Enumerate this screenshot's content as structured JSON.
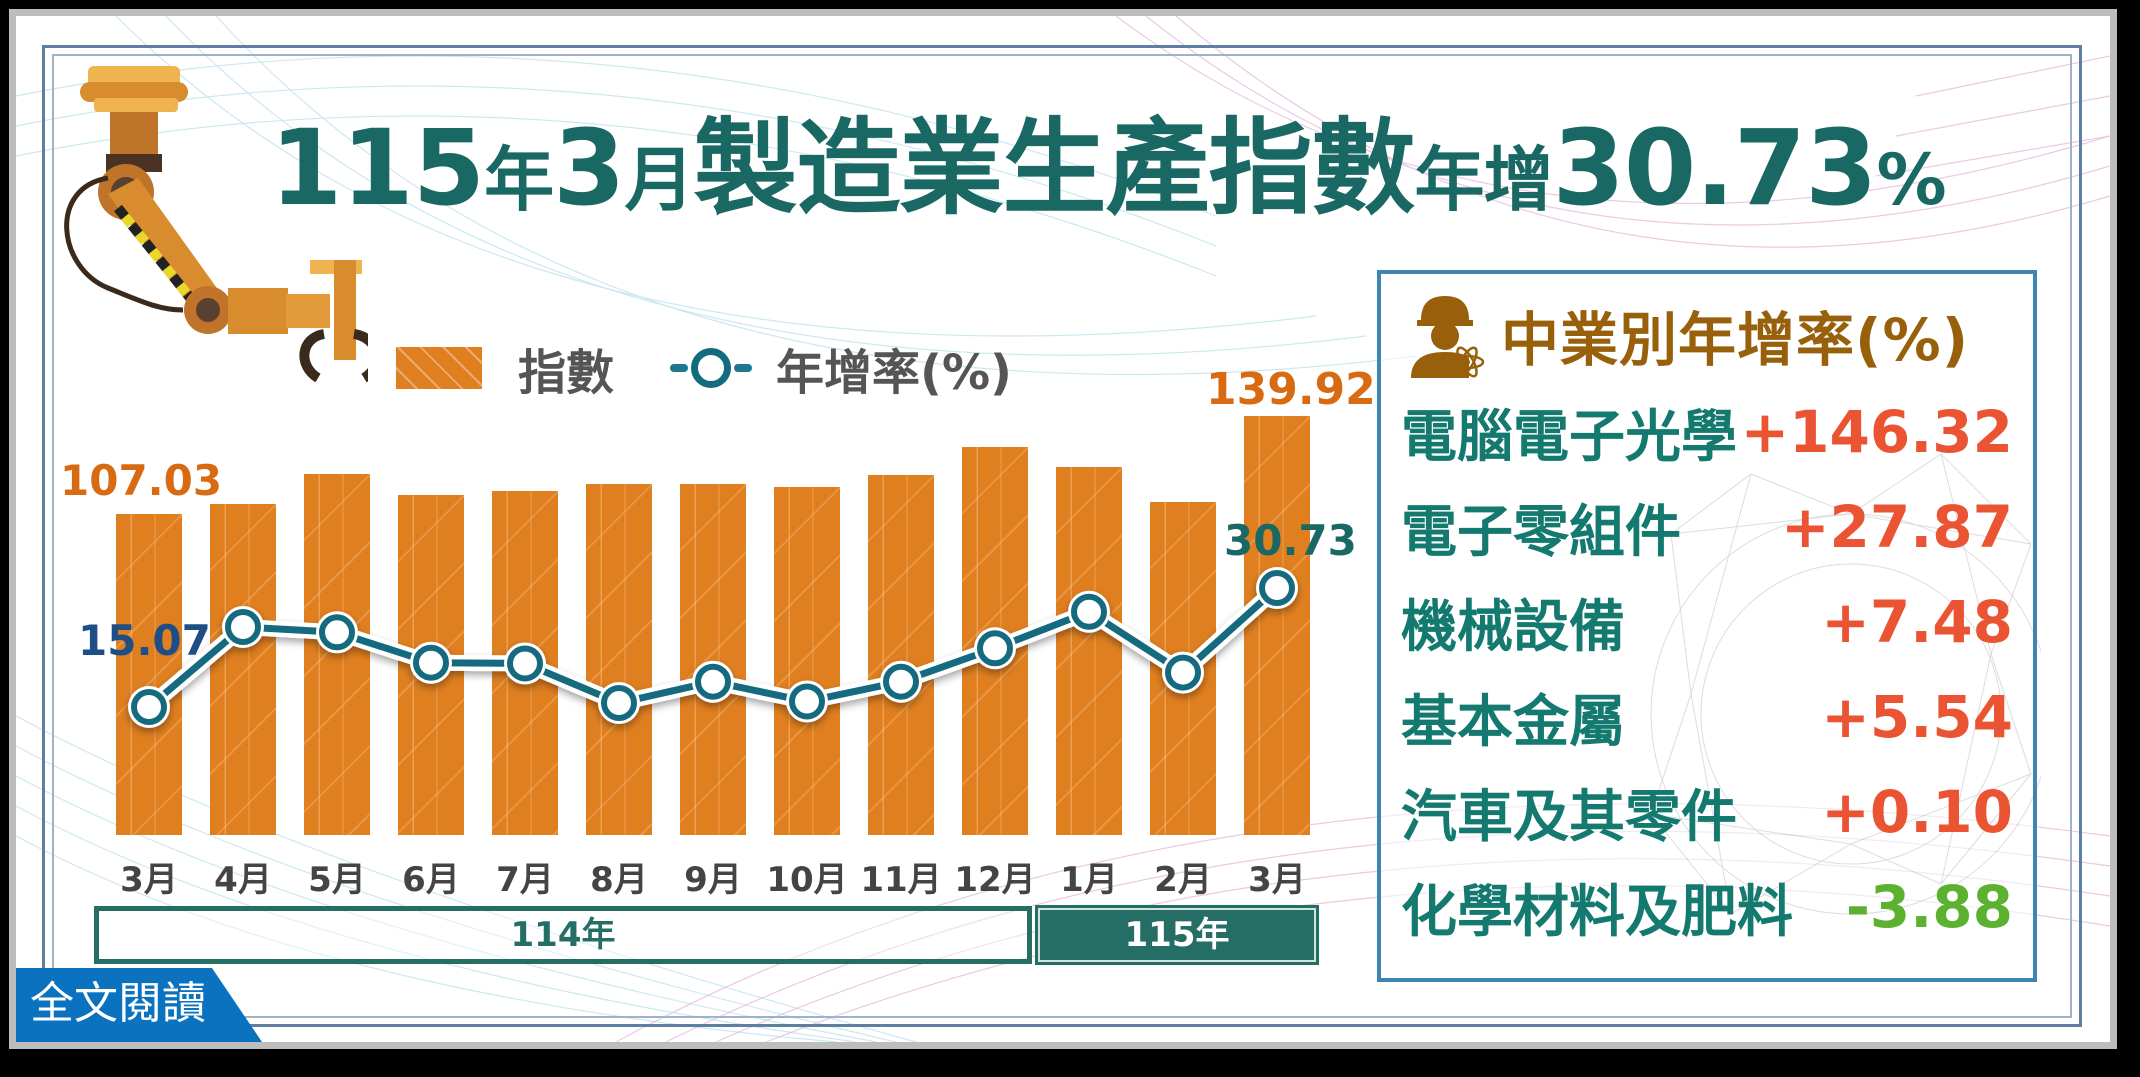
{
  "title": {
    "part1": "115",
    "part2": "年",
    "part3": "3",
    "part4": "月",
    "part5": "製造業生產指數",
    "part6": "年增",
    "part7": "30.73",
    "part8": "%"
  },
  "legend": {
    "bar_label": "指數",
    "line_label": "年增率(%)"
  },
  "chart_data": {
    "type": "bar+line",
    "title": "115年3月製造業生產指數年增30.73%",
    "categories": [
      "3月",
      "4月",
      "5月",
      "6月",
      "7月",
      "8月",
      "9月",
      "10月",
      "11月",
      "12月",
      "1月",
      "2月",
      "3月"
    ],
    "year_groups": [
      {
        "label": "114年",
        "start": 0,
        "end": 9
      },
      {
        "label": "115年",
        "start": 10,
        "end": 12
      }
    ],
    "series": [
      {
        "name": "指數",
        "kind": "bar",
        "color": "#e07f20",
        "values": [
          107.03,
          110.5,
          120.5,
          113.5,
          115.0,
          117.3,
          117.3,
          116.3,
          120.3,
          129.5,
          122.9,
          111.3,
          139.92
        ],
        "labeled": {
          "0": "107.03",
          "12": "139.92"
        }
      },
      {
        "name": "年增率(%)",
        "kind": "line",
        "color": "#136b80",
        "values": [
          15.07,
          25.6,
          24.9,
          20.9,
          20.8,
          15.6,
          18.4,
          15.8,
          18.4,
          22.8,
          27.6,
          19.6,
          30.73
        ],
        "labeled": {
          "0": "15.07",
          "12": "30.73"
        }
      }
    ],
    "xlabel": "",
    "ylabel": "",
    "grid": false,
    "legend_position": "top"
  },
  "panel": {
    "title": "中業別年增率(%)",
    "rows": [
      {
        "name": "電腦電子光學",
        "value": "+146.32",
        "color": "#ea5433"
      },
      {
        "name": "電子零組件",
        "value": "+27.87",
        "color": "#ea5433"
      },
      {
        "name": "機械設備",
        "value": "+7.48",
        "color": "#ea5433"
      },
      {
        "name": "基本金屬",
        "value": "+5.54",
        "color": "#ea5433"
      },
      {
        "name": "汽車及其零件",
        "value": "+0.10",
        "color": "#ea5433"
      },
      {
        "name": "化學材料及肥料",
        "value": "-3.88",
        "color": "#5db130"
      }
    ]
  },
  "cta": {
    "label": "全文閱讀"
  },
  "colors": {
    "title": "#1a6864",
    "bar": "#e07f20",
    "line": "#136b80",
    "bar_label": "#d86a12",
    "line_label_first": "#1f4e86",
    "line_label_last": "#1a6864",
    "panel_title": "#98600a",
    "positive": "#ea5433",
    "negative": "#5db130",
    "cta_bg": "#0b72c0"
  }
}
